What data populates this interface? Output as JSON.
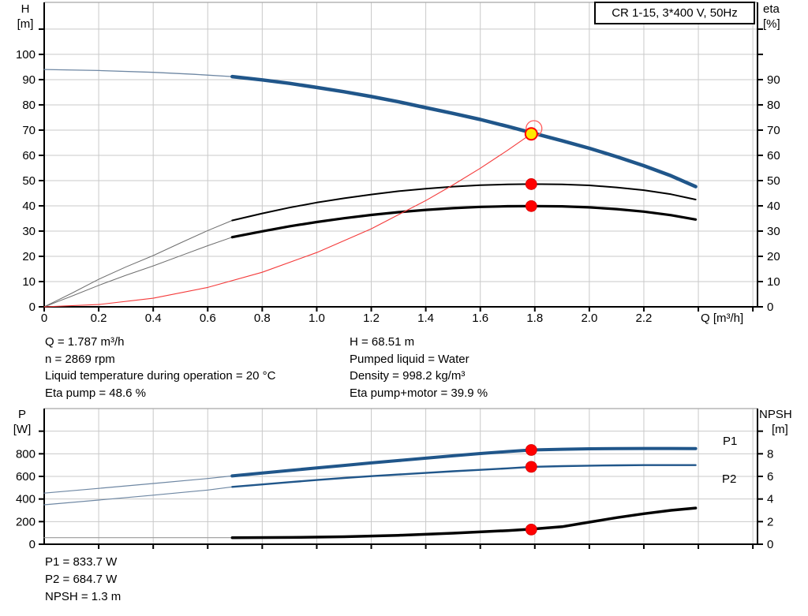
{
  "title_box": {
    "label": "CR 1-15, 3*400 V, 50Hz"
  },
  "colors": {
    "curve_blue": "#20568a",
    "curve_blue_thin": "#6e87a3",
    "curve_black": "#000000",
    "curve_gray_thin": "#6e6e6e",
    "npsh_thin": "#9a9a9a",
    "system_red": "#f43a3a",
    "dot_red": "#ff0000",
    "duty_yellow": "#ffe800",
    "grid": "#c9c9c9",
    "border_gray": "#a8a8a8",
    "axis_black": "#000000",
    "label_blue": "#1d5491"
  },
  "axis_labels": {
    "h": "H",
    "h_unit": "[m]",
    "eta": "eta",
    "eta_unit": "[%]",
    "q": "Q [m³/h]",
    "p": "P",
    "p_unit": "[W]",
    "npsh": "NPSH",
    "npsh_unit": "[m]"
  },
  "annotations": {
    "mid_left": [
      "Q = 1.787 m³/h",
      "n = 2869 rpm",
      "Liquid temperature during operation = 20 °C",
      "Eta pump = 48.6 %"
    ],
    "mid_right": [
      "H = 68.51 m",
      "Pumped liquid = Water",
      "Density = 998.2 kg/m³",
      "Eta pump+motor = 39.9 %"
    ],
    "bottom": [
      "P1 = 833.7 W",
      "P2 = 684.7 W",
      "NPSH = 1.3 m"
    ]
  },
  "operating_point": {
    "Q_m3h": 1.787,
    "H_m": 68.51,
    "n_rpm": 2869,
    "eta_pump_pct": 48.6,
    "eta_pump_motor_pct": 39.9,
    "P1_W": 833.7,
    "P2_W": 684.7,
    "NPSH_m": 1.3
  },
  "chart_data": [
    {
      "type": "line",
      "title": "CR 1-15, 3*400 V, 50Hz",
      "xlabel": "Q [m³/h]",
      "ylabel_left": "H [m]",
      "ylabel_right": "eta [%]",
      "xlim": [
        0,
        2.617
      ],
      "ylim_left": [
        0,
        120.6
      ],
      "ylim_right": [
        0,
        120.6
      ],
      "grid": true,
      "x_ticks": [
        {
          "v": 0,
          "t": "0"
        },
        {
          "v": 0.2,
          "t": "0.2"
        },
        {
          "v": 0.4,
          "t": "0.4"
        },
        {
          "v": 0.6,
          "t": "0.6"
        },
        {
          "v": 0.8,
          "t": "0.8"
        },
        {
          "v": 1.0,
          "t": "1.0"
        },
        {
          "v": 1.2,
          "t": "1.2"
        },
        {
          "v": 1.4,
          "t": "1.4"
        },
        {
          "v": 1.6,
          "t": "1.6"
        },
        {
          "v": 1.8,
          "t": "1.8"
        },
        {
          "v": 2.0,
          "t": "2.0"
        },
        {
          "v": 2.2,
          "t": "2.2"
        },
        {
          "v": 2.4,
          "t": ""
        },
        {
          "v": 2.6,
          "t": ""
        }
      ],
      "y_left_ticks": [
        {
          "v": 0,
          "t": "0"
        },
        {
          "v": 10,
          "t": "10"
        },
        {
          "v": 20,
          "t": "20"
        },
        {
          "v": 30,
          "t": "30"
        },
        {
          "v": 40,
          "t": "40"
        },
        {
          "v": 50,
          "t": "50"
        },
        {
          "v": 60,
          "t": "60"
        },
        {
          "v": 70,
          "t": "70"
        },
        {
          "v": 80,
          "t": "80"
        },
        {
          "v": 90,
          "t": "90"
        },
        {
          "v": 100,
          "t": "100"
        },
        {
          "v": 110,
          "t": ""
        }
      ],
      "y_right_ticks": [
        {
          "v": 0,
          "t": "0"
        },
        {
          "v": 10,
          "t": "10"
        },
        {
          "v": 20,
          "t": "20"
        },
        {
          "v": 30,
          "t": "30"
        },
        {
          "v": 40,
          "t": "40"
        },
        {
          "v": 50,
          "t": "50"
        },
        {
          "v": 60,
          "t": "60"
        },
        {
          "v": 70,
          "t": "70"
        },
        {
          "v": 80,
          "t": "80"
        },
        {
          "v": 90,
          "t": "90"
        },
        {
          "v": 100,
          "t": ""
        },
        {
          "v": 110,
          "t": ""
        }
      ],
      "series": [
        {
          "name": "head-curve-thin",
          "axis": "L",
          "color": "#6e87a3",
          "width": 1.3,
          "points": [
            [
              0,
              94
            ],
            [
              0.2,
              93.6
            ],
            [
              0.4,
              92.9
            ],
            [
              0.55,
              92.1
            ],
            [
              0.69,
              91.2
            ]
          ]
        },
        {
          "name": "eta-pump-thin",
          "axis": "R",
          "color": "#6e6e6e",
          "width": 1,
          "points": [
            [
              0,
              0
            ],
            [
              0.1,
              5.3
            ],
            [
              0.2,
              10.9
            ],
            [
              0.3,
              15.8
            ],
            [
              0.4,
              20.3
            ],
            [
              0.5,
              25.3
            ],
            [
              0.6,
              30.2
            ],
            [
              0.69,
              34.2
            ]
          ]
        },
        {
          "name": "eta-pump-motor-thin",
          "axis": "R",
          "color": "#6e6e6e",
          "width": 1,
          "points": [
            [
              0,
              0
            ],
            [
              0.1,
              4.2
            ],
            [
              0.2,
              8.5
            ],
            [
              0.3,
              12.5
            ],
            [
              0.4,
              16.2
            ],
            [
              0.5,
              20.2
            ],
            [
              0.6,
              24.2
            ],
            [
              0.69,
              27.6
            ]
          ]
        },
        {
          "name": "eta-pump",
          "axis": "R",
          "color": "#000000",
          "width": 2,
          "points": [
            [
              0.69,
              34.2
            ],
            [
              0.8,
              37.0
            ],
            [
              0.9,
              39.3
            ],
            [
              1.0,
              41.3
            ],
            [
              1.1,
              43.0
            ],
            [
              1.2,
              44.5
            ],
            [
              1.3,
              45.8
            ],
            [
              1.4,
              46.8
            ],
            [
              1.5,
              47.6
            ],
            [
              1.6,
              48.2
            ],
            [
              1.7,
              48.5
            ],
            [
              1.787,
              48.6
            ],
            [
              1.9,
              48.5
            ],
            [
              2.0,
              48.1
            ],
            [
              2.1,
              47.3
            ],
            [
              2.2,
              46.2
            ],
            [
              2.3,
              44.6
            ],
            [
              2.39,
              42.5
            ]
          ]
        },
        {
          "name": "eta-pump-motor",
          "axis": "R",
          "color": "#000000",
          "width": 3.2,
          "points": [
            [
              0.69,
              27.6
            ],
            [
              0.8,
              29.9
            ],
            [
              0.9,
              31.9
            ],
            [
              1.0,
              33.6
            ],
            [
              1.1,
              35.1
            ],
            [
              1.2,
              36.4
            ],
            [
              1.3,
              37.5
            ],
            [
              1.4,
              38.4
            ],
            [
              1.5,
              39.1
            ],
            [
              1.6,
              39.6
            ],
            [
              1.7,
              39.85
            ],
            [
              1.787,
              39.9
            ],
            [
              1.9,
              39.8
            ],
            [
              2.0,
              39.4
            ],
            [
              2.1,
              38.7
            ],
            [
              2.2,
              37.7
            ],
            [
              2.3,
              36.3
            ],
            [
              2.39,
              34.6
            ]
          ]
        },
        {
          "name": "head-curve",
          "axis": "L",
          "color": "#20568a",
          "width": 4.5,
          "points": [
            [
              0.69,
              91.2
            ],
            [
              0.8,
              89.9
            ],
            [
              0.9,
              88.5
            ],
            [
              1.0,
              86.9
            ],
            [
              1.1,
              85.2
            ],
            [
              1.2,
              83.3
            ],
            [
              1.3,
              81.2
            ],
            [
              1.4,
              78.9
            ],
            [
              1.5,
              76.6
            ],
            [
              1.6,
              74.2
            ],
            [
              1.7,
              71.5
            ],
            [
              1.787,
              69.0
            ],
            [
              1.9,
              65.8
            ],
            [
              2.0,
              62.8
            ],
            [
              2.1,
              59.5
            ],
            [
              2.2,
              55.9
            ],
            [
              2.3,
              51.9
            ],
            [
              2.39,
              47.6
            ]
          ]
        },
        {
          "name": "system-curve",
          "axis": "L",
          "color": "#f43a3a",
          "width": 1.1,
          "points": [
            [
              0,
              0
            ],
            [
              0.2,
              0.9
            ],
            [
              0.4,
              3.4
            ],
            [
              0.6,
              7.7
            ],
            [
              0.8,
              13.7
            ],
            [
              1.0,
              21.5
            ],
            [
              1.2,
              30.9
            ],
            [
              1.4,
              42.1
            ],
            [
              1.5,
              48.3
            ],
            [
              1.6,
              54.9
            ],
            [
              1.7,
              62.0
            ],
            [
              1.787,
              68.51
            ]
          ]
        }
      ],
      "markers": [
        {
          "kind": "ring",
          "axis": "L",
          "q": 1.797,
          "v": 70.6
        },
        {
          "kind": "duty",
          "axis": "L",
          "q": 1.787,
          "v": 68.51
        },
        {
          "kind": "dot",
          "axis": "R",
          "q": 1.787,
          "v": 48.6
        },
        {
          "kind": "dot",
          "axis": "R",
          "q": 1.787,
          "v": 39.9
        }
      ],
      "series_labels": []
    },
    {
      "type": "line",
      "title": "",
      "xlabel": "",
      "ylabel_left": "P [W]",
      "ylabel_right": "NPSH [m]",
      "xlim": [
        0,
        2.617
      ],
      "ylim_left": [
        0,
        1200
      ],
      "ylim_right": [
        0,
        12
      ],
      "grid": true,
      "x_ticks": [
        {
          "v": 0.2,
          "t": ""
        },
        {
          "v": 0.4,
          "t": ""
        },
        {
          "v": 0.6,
          "t": ""
        },
        {
          "v": 0.8,
          "t": ""
        },
        {
          "v": 1.0,
          "t": ""
        },
        {
          "v": 1.2,
          "t": ""
        },
        {
          "v": 1.4,
          "t": ""
        },
        {
          "v": 1.6,
          "t": ""
        },
        {
          "v": 1.8,
          "t": ""
        },
        {
          "v": 2.0,
          "t": ""
        },
        {
          "v": 2.2,
          "t": ""
        },
        {
          "v": 2.4,
          "t": ""
        },
        {
          "v": 2.6,
          "t": ""
        }
      ],
      "y_left_ticks": [
        {
          "v": 0,
          "t": "0"
        },
        {
          "v": 200,
          "t": "200"
        },
        {
          "v": 400,
          "t": "400"
        },
        {
          "v": 600,
          "t": "600"
        },
        {
          "v": 800,
          "t": "800"
        },
        {
          "v": 1000,
          "t": ""
        }
      ],
      "y_right_ticks": [
        {
          "v": 0,
          "t": "0"
        },
        {
          "v": 2,
          "t": "2"
        },
        {
          "v": 4,
          "t": "4"
        },
        {
          "v": 6,
          "t": "6"
        },
        {
          "v": 8,
          "t": "8"
        },
        {
          "v": 10,
          "t": ""
        }
      ],
      "series": [
        {
          "name": "p1-thin",
          "axis": "L",
          "color": "#6e87a3",
          "width": 1.2,
          "points": [
            [
              0,
              452
            ],
            [
              0.2,
              494
            ],
            [
              0.4,
              537
            ],
            [
              0.6,
              581
            ],
            [
              0.69,
              604
            ]
          ]
        },
        {
          "name": "p2-thin",
          "axis": "L",
          "color": "#6e87a3",
          "width": 1.2,
          "points": [
            [
              0,
              349
            ],
            [
              0.2,
              391
            ],
            [
              0.4,
              434
            ],
            [
              0.6,
              479
            ],
            [
              0.69,
              507
            ]
          ]
        },
        {
          "name": "npsh-thin",
          "axis": "R",
          "color": "#9a9a9a",
          "width": 1.2,
          "points": [
            [
              0,
              0.58
            ],
            [
              0.35,
              0.58
            ],
            [
              0.69,
              0.58
            ]
          ]
        },
        {
          "name": "npsh-curve",
          "axis": "R",
          "color": "#000000",
          "width": 3.5,
          "points": [
            [
              0.69,
              0.58
            ],
            [
              0.9,
              0.6
            ],
            [
              1.1,
              0.66
            ],
            [
              1.3,
              0.79
            ],
            [
              1.5,
              0.98
            ],
            [
              1.7,
              1.21
            ],
            [
              1.787,
              1.33
            ],
            [
              1.9,
              1.55
            ],
            [
              2.0,
              1.95
            ],
            [
              2.1,
              2.35
            ],
            [
              2.2,
              2.7
            ],
            [
              2.3,
              3.0
            ],
            [
              2.39,
              3.2
            ]
          ]
        },
        {
          "name": "p2-curve",
          "axis": "L",
          "color": "#20568a",
          "width": 2.4,
          "points": [
            [
              0.69,
              507
            ],
            [
              0.8,
              529
            ],
            [
              0.9,
              549
            ],
            [
              1.0,
              568
            ],
            [
              1.1,
              586
            ],
            [
              1.2,
              602
            ],
            [
              1.3,
              617
            ],
            [
              1.4,
              631
            ],
            [
              1.5,
              645
            ],
            [
              1.6,
              658
            ],
            [
              1.7,
              671
            ],
            [
              1.787,
              684.7
            ],
            [
              1.9,
              691
            ],
            [
              2.0,
              695
            ],
            [
              2.1,
              698
            ],
            [
              2.2,
              700
            ],
            [
              2.3,
              700
            ],
            [
              2.39,
              700
            ]
          ]
        },
        {
          "name": "p1-curve",
          "axis": "L",
          "color": "#20568a",
          "width": 4,
          "points": [
            [
              0.69,
              604
            ],
            [
              0.8,
              629
            ],
            [
              0.9,
              652
            ],
            [
              1.0,
              675
            ],
            [
              1.1,
              697
            ],
            [
              1.2,
              719
            ],
            [
              1.3,
              740
            ],
            [
              1.4,
              761
            ],
            [
              1.5,
              782
            ],
            [
              1.6,
              802
            ],
            [
              1.7,
              820
            ],
            [
              1.787,
              833.7
            ],
            [
              1.9,
              840
            ],
            [
              2.0,
              844
            ],
            [
              2.1,
              846
            ],
            [
              2.2,
              847
            ],
            [
              2.3,
              847
            ],
            [
              2.39,
              846
            ]
          ]
        }
      ],
      "markers": [
        {
          "kind": "dot",
          "axis": "L",
          "q": 1.787,
          "v": 833.7
        },
        {
          "kind": "dot",
          "axis": "L",
          "q": 1.787,
          "v": 684.7
        },
        {
          "kind": "dot",
          "axis": "R",
          "q": 1.787,
          "v": 1.3
        }
      ],
      "series_labels": [
        {
          "text": "P1",
          "x": 916,
          "y": 564
        },
        {
          "text": "P2",
          "x": 915,
          "y": 612
        }
      ]
    }
  ]
}
